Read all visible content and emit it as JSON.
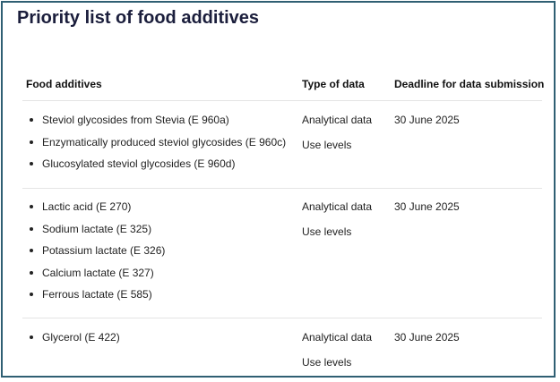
{
  "title": "Priority list of food additives",
  "columns": {
    "food_additives": "Food additives",
    "type_of_data": "Type of data",
    "deadline": "Deadline for data submission"
  },
  "rows": [
    {
      "additives": [
        "Steviol glycosides from Stevia (E 960a)",
        "Enzymatically produced steviol glycosides (E 960c)",
        "Glucosylated steviol glycosides (E 960d)"
      ],
      "types": [
        "Analytical data",
        "Use levels"
      ],
      "deadline": "30 June 2025"
    },
    {
      "additives": [
        "Lactic acid (E 270)",
        "Sodium lactate (E 325)",
        "Potassium lactate (E 326)",
        "Calcium lactate (E 327)",
        "Ferrous lactate (E 585)"
      ],
      "types": [
        "Analytical data",
        "Use levels"
      ],
      "deadline": "30 June 2025"
    },
    {
      "additives": [
        "Glycerol (E 422)"
      ],
      "types": [
        "Analytical data",
        "Use levels"
      ],
      "deadline": "30 June 2025"
    }
  ]
}
